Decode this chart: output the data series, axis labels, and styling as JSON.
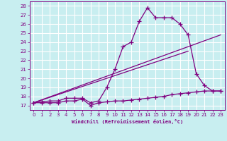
{
  "xlabel": "Windchill (Refroidissement éolien,°C)",
  "bg_color": "#c8eef0",
  "line_color": "#800080",
  "grid_color": "#ffffff",
  "xlim": [
    -0.5,
    23.5
  ],
  "ylim": [
    16.5,
    28.5
  ],
  "xticks": [
    0,
    1,
    2,
    3,
    4,
    5,
    6,
    7,
    8,
    9,
    10,
    11,
    12,
    13,
    14,
    15,
    16,
    17,
    18,
    19,
    20,
    21,
    22,
    23
  ],
  "yticks": [
    17,
    18,
    19,
    20,
    21,
    22,
    23,
    24,
    25,
    26,
    27,
    28
  ],
  "curve1_x": [
    0,
    1,
    2,
    3,
    4,
    5,
    6,
    7,
    8,
    9,
    10,
    11,
    12,
    13,
    14,
    15,
    16,
    17,
    18,
    19,
    20,
    21,
    22,
    23
  ],
  "curve1_y": [
    17.3,
    17.4,
    17.5,
    17.5,
    17.8,
    17.8,
    17.8,
    17.3,
    17.5,
    19.0,
    21.0,
    23.5,
    24.0,
    26.3,
    27.8,
    26.7,
    26.7,
    26.7,
    26.0,
    24.8,
    20.5,
    19.2,
    18.6,
    18.6
  ],
  "curve2_x": [
    0,
    1,
    2,
    3,
    4,
    5,
    6,
    7,
    8,
    9,
    10,
    11,
    12,
    13,
    14,
    15,
    16,
    17,
    18,
    19,
    20,
    21,
    22,
    23
  ],
  "curve2_y": [
    17.3,
    17.3,
    17.3,
    17.3,
    17.5,
    17.5,
    17.7,
    17.0,
    17.3,
    17.4,
    17.5,
    17.5,
    17.6,
    17.7,
    17.8,
    17.9,
    18.0,
    18.2,
    18.3,
    18.4,
    18.5,
    18.6,
    18.6,
    18.6
  ],
  "line3_x": [
    0,
    19
  ],
  "line3_y": [
    17.3,
    23.0
  ],
  "line4_x": [
    0,
    23
  ],
  "line4_y": [
    17.3,
    24.8
  ]
}
